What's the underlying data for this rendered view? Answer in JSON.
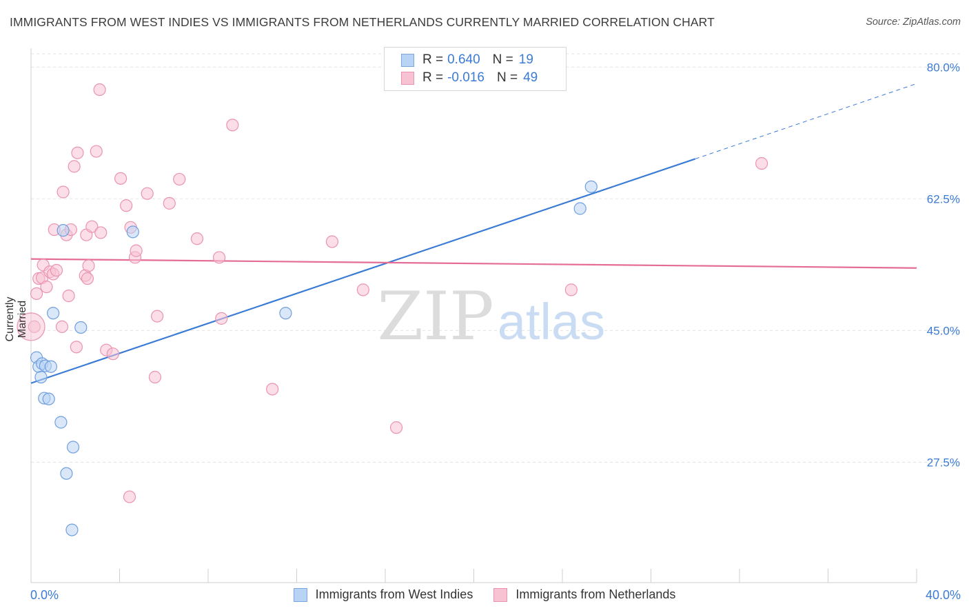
{
  "title": "IMMIGRANTS FROM WEST INDIES VS IMMIGRANTS FROM NETHERLANDS CURRENTLY MARRIED CORRELATION CHART",
  "source": "Source: ZipAtlas.com",
  "watermark": {
    "zip": "ZIP",
    "atlas": "atlas"
  },
  "colors": {
    "blue": "#3a7bd5",
    "blue_fill": "#b9d3f4",
    "pink": "#e46c95",
    "pink_fill": "#f7c3d3",
    "grid": "#e3e3e3",
    "axis_label": "#3a7bd5"
  },
  "legend": {
    "rows": [
      {
        "r_label": "R =",
        "r_value": "0.640",
        "n_label": "N =",
        "n_value": "19"
      },
      {
        "r_label": "R =",
        "r_value": "-0.016",
        "n_label": "N =",
        "n_value": "49"
      }
    ]
  },
  "bottom_legend": [
    "Immigrants from West Indies",
    "Immigrants from Netherlands"
  ],
  "chart_data": {
    "type": "scatter",
    "title": "IMMIGRANTS FROM WEST INDIES VS IMMIGRANTS FROM NETHERLANDS CURRENTLY MARRIED CORRELATION CHART",
    "xlabel": "",
    "ylabel": "Currently Married",
    "x_ticks": [
      "0.0%",
      "40.0%"
    ],
    "y_ticks": [
      "27.5%",
      "45.0%",
      "62.5%",
      "80.0%"
    ],
    "y_tick_values": [
      27.5,
      45.0,
      62.5,
      80.0
    ],
    "xlim": [
      0,
      40
    ],
    "ylim": [
      11.5,
      82.5
    ],
    "grid": true,
    "legend_placement": "top-center",
    "series": [
      {
        "name": "Immigrants from West Indies",
        "color": "#3a7bd5",
        "points": [
          [
            0.25,
            41.4
          ],
          [
            0.35,
            40.2
          ],
          [
            0.45,
            38.8
          ],
          [
            0.5,
            40.6
          ],
          [
            0.65,
            40.3
          ],
          [
            0.6,
            36.0
          ],
          [
            0.8,
            35.9
          ],
          [
            0.9,
            40.2
          ],
          [
            1.0,
            47.3
          ],
          [
            1.35,
            32.8
          ],
          [
            1.45,
            58.3
          ],
          [
            1.6,
            26.0
          ],
          [
            1.9,
            29.5
          ],
          [
            2.25,
            45.4
          ],
          [
            1.85,
            18.5
          ],
          [
            4.6,
            58.1
          ],
          [
            11.5,
            47.3
          ],
          [
            24.8,
            61.2
          ],
          [
            25.3,
            64.1
          ]
        ],
        "trend": {
          "x0": 0.0,
          "y0": 38.0,
          "x1": 30.0,
          "y1": 67.8,
          "x_dash_end": 40.0,
          "y_dash_end": 77.8
        }
      },
      {
        "name": "Immigrants from Netherlands",
        "color": "#e46c95",
        "points": [
          [
            0.15,
            45.5
          ],
          [
            0.25,
            49.9
          ],
          [
            0.35,
            51.9
          ],
          [
            0.5,
            52.0
          ],
          [
            0.55,
            53.7
          ],
          [
            0.7,
            50.8
          ],
          [
            0.85,
            52.8
          ],
          [
            1.0,
            52.5
          ],
          [
            1.05,
            58.4
          ],
          [
            1.15,
            53.0
          ],
          [
            1.4,
            45.5
          ],
          [
            1.45,
            63.4
          ],
          [
            1.6,
            57.7
          ],
          [
            1.7,
            49.6
          ],
          [
            1.8,
            58.4
          ],
          [
            1.95,
            66.8
          ],
          [
            2.05,
            42.8
          ],
          [
            2.1,
            68.6
          ],
          [
            2.45,
            52.3
          ],
          [
            2.5,
            57.7
          ],
          [
            2.55,
            51.9
          ],
          [
            2.6,
            53.6
          ],
          [
            2.75,
            58.8
          ],
          [
            2.95,
            68.8
          ],
          [
            3.1,
            77.0
          ],
          [
            3.15,
            58.0
          ],
          [
            3.4,
            42.4
          ],
          [
            3.7,
            41.9
          ],
          [
            4.05,
            65.2
          ],
          [
            4.3,
            61.6
          ],
          [
            4.45,
            22.9
          ],
          [
            4.5,
            58.7
          ],
          [
            4.7,
            54.7
          ],
          [
            4.75,
            55.6
          ],
          [
            5.25,
            63.2
          ],
          [
            5.6,
            38.8
          ],
          [
            5.7,
            46.9
          ],
          [
            6.25,
            61.9
          ],
          [
            6.7,
            65.1
          ],
          [
            7.5,
            57.2
          ],
          [
            8.5,
            54.7
          ],
          [
            8.6,
            46.6
          ],
          [
            9.1,
            72.3
          ],
          [
            10.9,
            37.2
          ],
          [
            13.6,
            56.8
          ],
          [
            15.0,
            50.4
          ],
          [
            16.5,
            32.1
          ],
          [
            24.4,
            50.4
          ],
          [
            33.0,
            67.2
          ]
        ],
        "trend": {
          "x0": 0.0,
          "y0": 54.5,
          "x1": 40.0,
          "y1": 53.3
        }
      }
    ]
  }
}
